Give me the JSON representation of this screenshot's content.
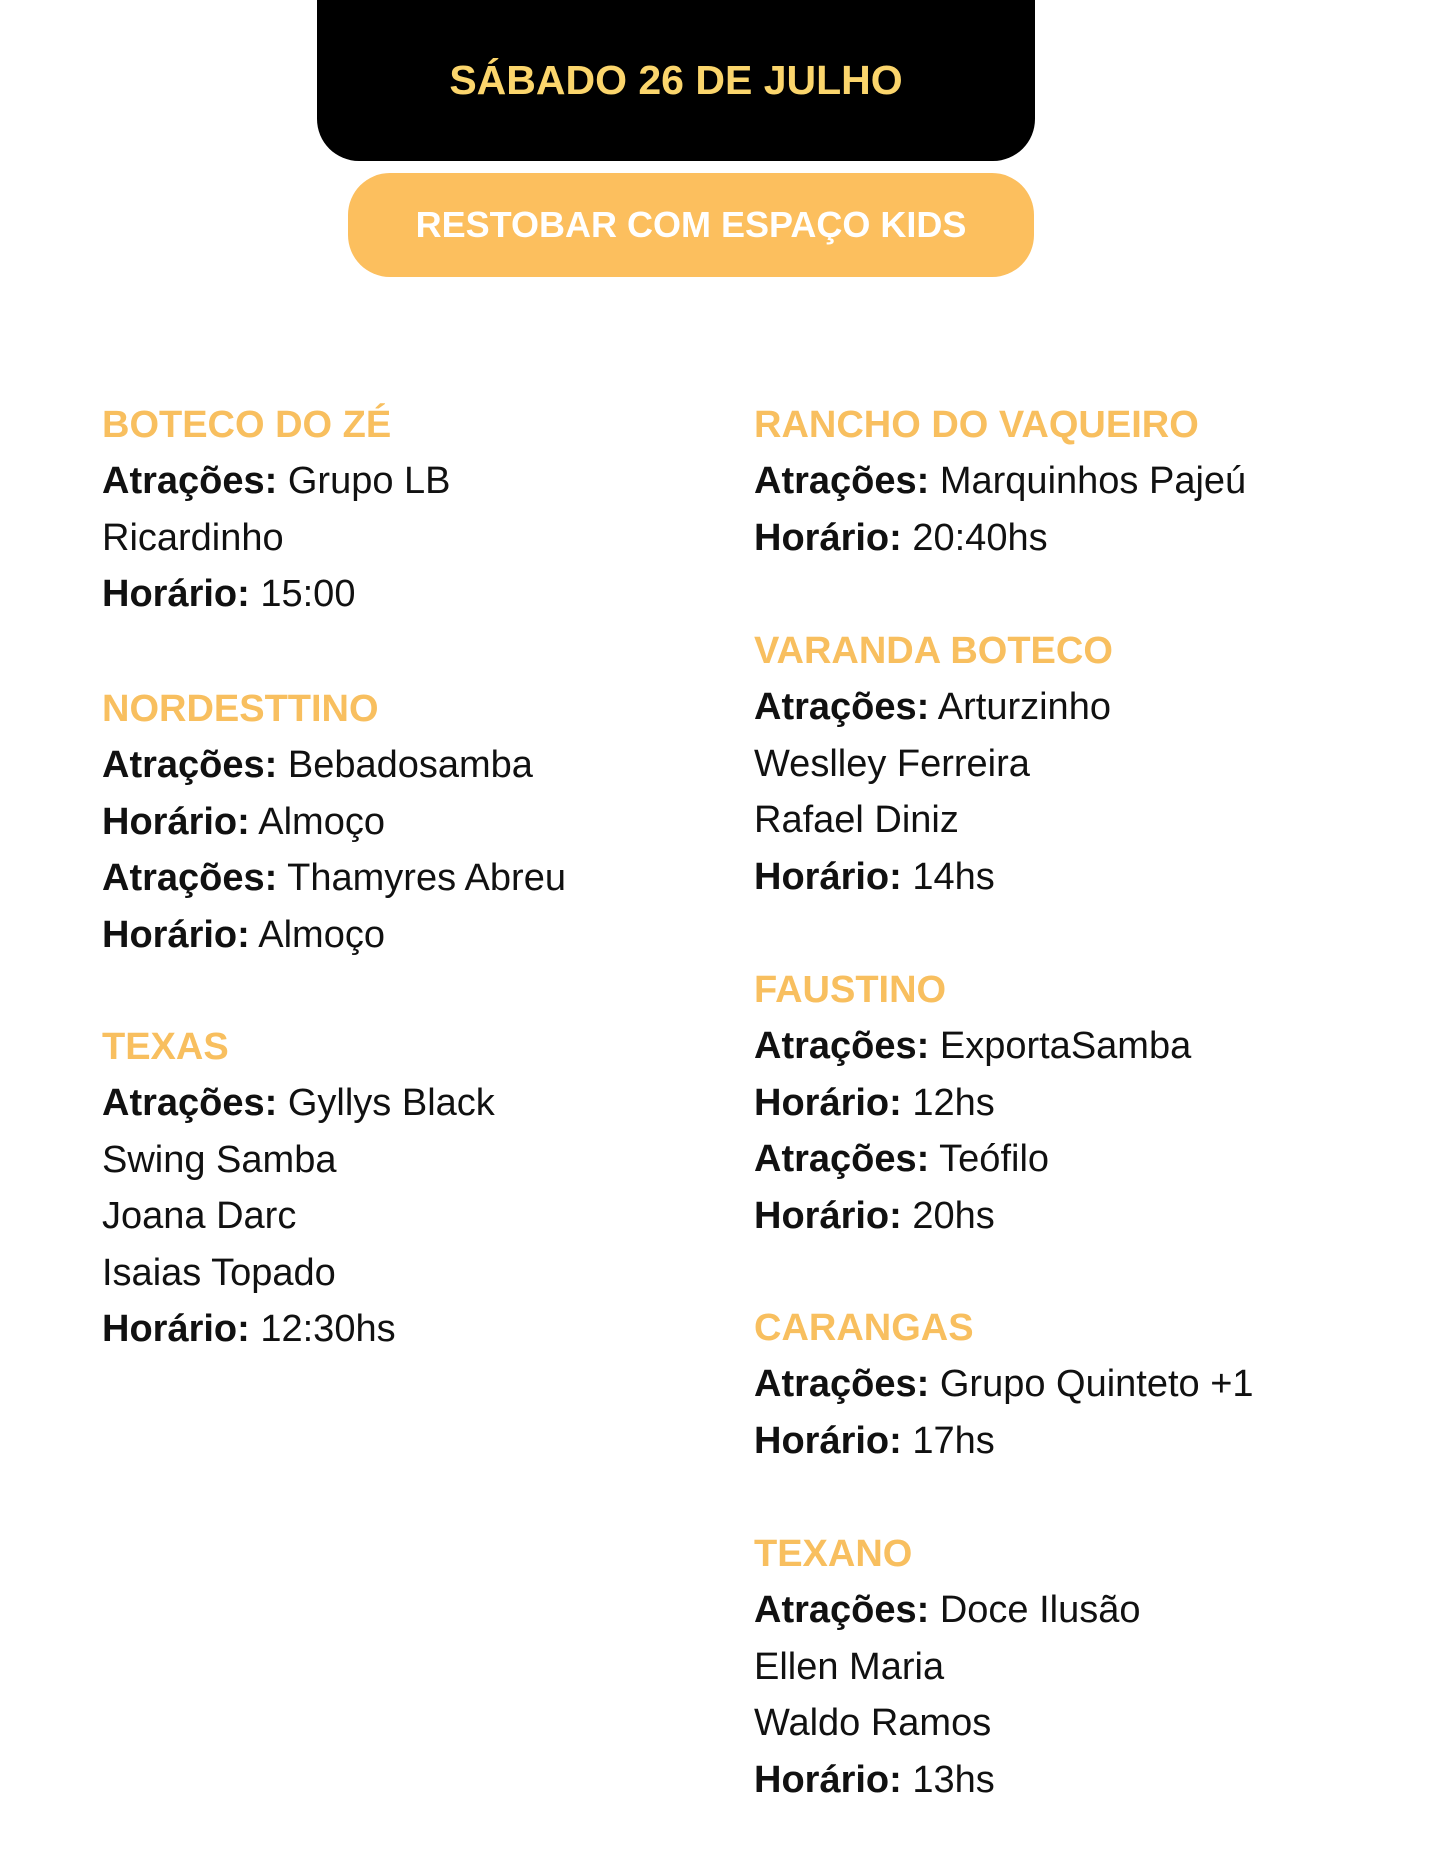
{
  "header": {
    "date": "SÁBADO 26 DE JULHO",
    "category": "RESTOBAR COM ESPAÇO KIDS"
  },
  "colors": {
    "date_text": "#fbd56c",
    "pill_bg": "#fcbf5e",
    "venue_name": "#f8bf5f"
  },
  "labels": {
    "attractions": "Atrações:",
    "time": "Horário:"
  },
  "venues": [
    {
      "name": "BOTECO DO ZÉ",
      "lines": [
        {
          "label": "Atrações:",
          "text": "Grupo LB"
        },
        {
          "label": "",
          "text": "Ricardinho"
        },
        {
          "label": "Horário:",
          "text": "15:00"
        }
      ]
    },
    {
      "name": "NORDESTTINO",
      "lines": [
        {
          "label": "Atrações:",
          "text": "Bebadosamba"
        },
        {
          "label": "Horário:",
          "text": "Almoço"
        },
        {
          "label": "Atrações:",
          "text": "Thamyres Abreu"
        },
        {
          "label": "Horário:",
          "text": "Almoço"
        }
      ]
    },
    {
      "name": "TEXAS",
      "lines": [
        {
          "label": "Atrações:",
          "text": "Gyllys Black"
        },
        {
          "label": "",
          "text": "Swing Samba"
        },
        {
          "label": "",
          "text": "Joana Darc"
        },
        {
          "label": "",
          "text": "Isaias Topado"
        },
        {
          "label": "Horário:",
          "text": "12:30hs"
        }
      ]
    },
    {
      "name": "RANCHO DO VAQUEIRO",
      "lines": [
        {
          "label": "Atrações:",
          "text": "Marquinhos Pajeú"
        },
        {
          "label": "Horário:",
          "text": "20:40hs"
        }
      ]
    },
    {
      "name": "VARANDA BOTECO",
      "lines": [
        {
          "label": "Atrações:",
          "text": "Arturzinho"
        },
        {
          "label": "",
          "text": "Weslley Ferreira"
        },
        {
          "label": "",
          "text": "Rafael Diniz"
        },
        {
          "label": "Horário:",
          "text": "14hs"
        }
      ]
    },
    {
      "name": "FAUSTINO",
      "lines": [
        {
          "label": "Atrações:",
          "text": "ExportaSamba"
        },
        {
          "label": "Horário:",
          "text": "12hs"
        },
        {
          "label": "Atrações:",
          "text": "Teófilo"
        },
        {
          "label": "Horário:",
          "text": "20hs"
        }
      ]
    },
    {
      "name": "CARANGAS",
      "lines": [
        {
          "label": "Atrações:",
          "text": "Grupo Quinteto +1"
        },
        {
          "label": "Horário:",
          "text": "17hs"
        }
      ]
    },
    {
      "name": "TEXANO",
      "lines": [
        {
          "label": "Atrações:",
          "text": "Doce Ilusão"
        },
        {
          "label": "",
          "text": "Ellen Maria"
        },
        {
          "label": "",
          "text": "Waldo Ramos"
        },
        {
          "label": "Horário:",
          "text": "13hs"
        }
      ]
    }
  ]
}
